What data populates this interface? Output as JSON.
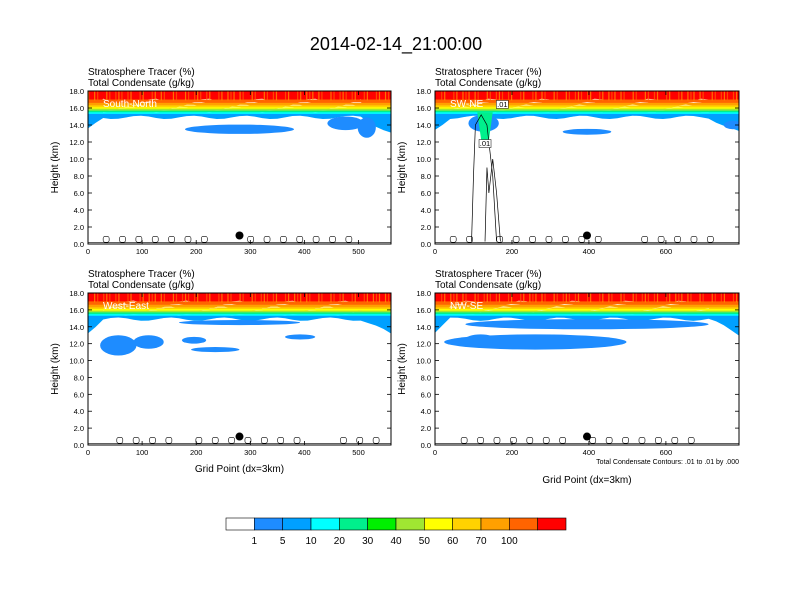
{
  "title": "2014-02-14_21:00:00",
  "footnote": "Total Condensate Contours: .01 to .01 by .000",
  "colorbar": {
    "colors": [
      "#ffffff",
      "#1e8cff",
      "#00a0ff",
      "#00ffff",
      "#00f08c",
      "#00f000",
      "#a0e632",
      "#ffff00",
      "#ffd200",
      "#ffa000",
      "#ff6400",
      "#ff0000"
    ],
    "labels": [
      "1",
      "5",
      "10",
      "20",
      "30",
      "40",
      "50",
      "60",
      "70",
      "100"
    ]
  },
  "chart_data": [
    {
      "type": "heatmap",
      "panel_label": "South-North",
      "label_line1": "Stratosphere Tracer   (%)",
      "label_line2": "Total Condensate   (g/kg)",
      "ylabel": "Height (km)",
      "xlabel": "",
      "xlim": [
        0,
        560
      ],
      "ylim": [
        0,
        18
      ],
      "xticks": [
        "0",
        "100",
        "200",
        "300",
        "400",
        "500"
      ],
      "yticks": [
        "0.0",
        "2.0",
        "4.0",
        "6.0",
        "8.0",
        "10.0",
        "12.0",
        "14.0",
        "16.0",
        "18.0"
      ],
      "marker": {
        "x": 280,
        "y": 1.0
      },
      "contour_labels": []
    },
    {
      "type": "heatmap",
      "panel_label": "SW-NE",
      "label_line1": "Stratosphere Tracer   (%)",
      "label_line2": "Total Condensate   (g/kg)",
      "ylabel": "Height (km)",
      "xlabel": "",
      "xlim": [
        0,
        790
      ],
      "ylim": [
        0,
        18
      ],
      "xticks": [
        "0",
        "200",
        "400",
        "600"
      ],
      "yticks": [
        "0.0",
        "2.0",
        "4.0",
        "6.0",
        "8.0",
        "10.0",
        "12.0",
        "14.0",
        "16.0",
        "18.0"
      ],
      "marker": {
        "x": 395,
        "y": 1.0
      },
      "contour_labels": [
        ".01",
        ".01"
      ]
    },
    {
      "type": "heatmap",
      "panel_label": "West-East",
      "label_line1": "Stratosphere Tracer   (%)",
      "label_line2": "Total Condensate   (g/kg)",
      "ylabel": "Height (km)",
      "xlabel": "Grid Point (dx=3km)",
      "xlim": [
        0,
        560
      ],
      "ylim": [
        0,
        18
      ],
      "xticks": [
        "0",
        "100",
        "200",
        "300",
        "400",
        "500"
      ],
      "yticks": [
        "0.0",
        "2.0",
        "4.0",
        "6.0",
        "8.0",
        "10.0",
        "12.0",
        "14.0",
        "16.0",
        "18.0"
      ],
      "marker": {
        "x": 280,
        "y": 1.0
      },
      "contour_labels": []
    },
    {
      "type": "heatmap",
      "panel_label": "NW-SE",
      "label_line1": "Stratosphere Tracer   (%)",
      "label_line2": "Total Condensate   (g/kg)",
      "ylabel": "Height (km)",
      "xlabel": "Grid Point (dx=3km)",
      "xlim": [
        0,
        790
      ],
      "ylim": [
        0,
        18
      ],
      "xticks": [
        "0",
        "200",
        "400",
        "600"
      ],
      "yticks": [
        "0.0",
        "2.0",
        "4.0",
        "6.0",
        "8.0",
        "10.0",
        "12.0",
        "14.0",
        "16.0",
        "18.0"
      ],
      "marker": {
        "x": 395,
        "y": 1.0
      },
      "contour_labels": []
    }
  ]
}
